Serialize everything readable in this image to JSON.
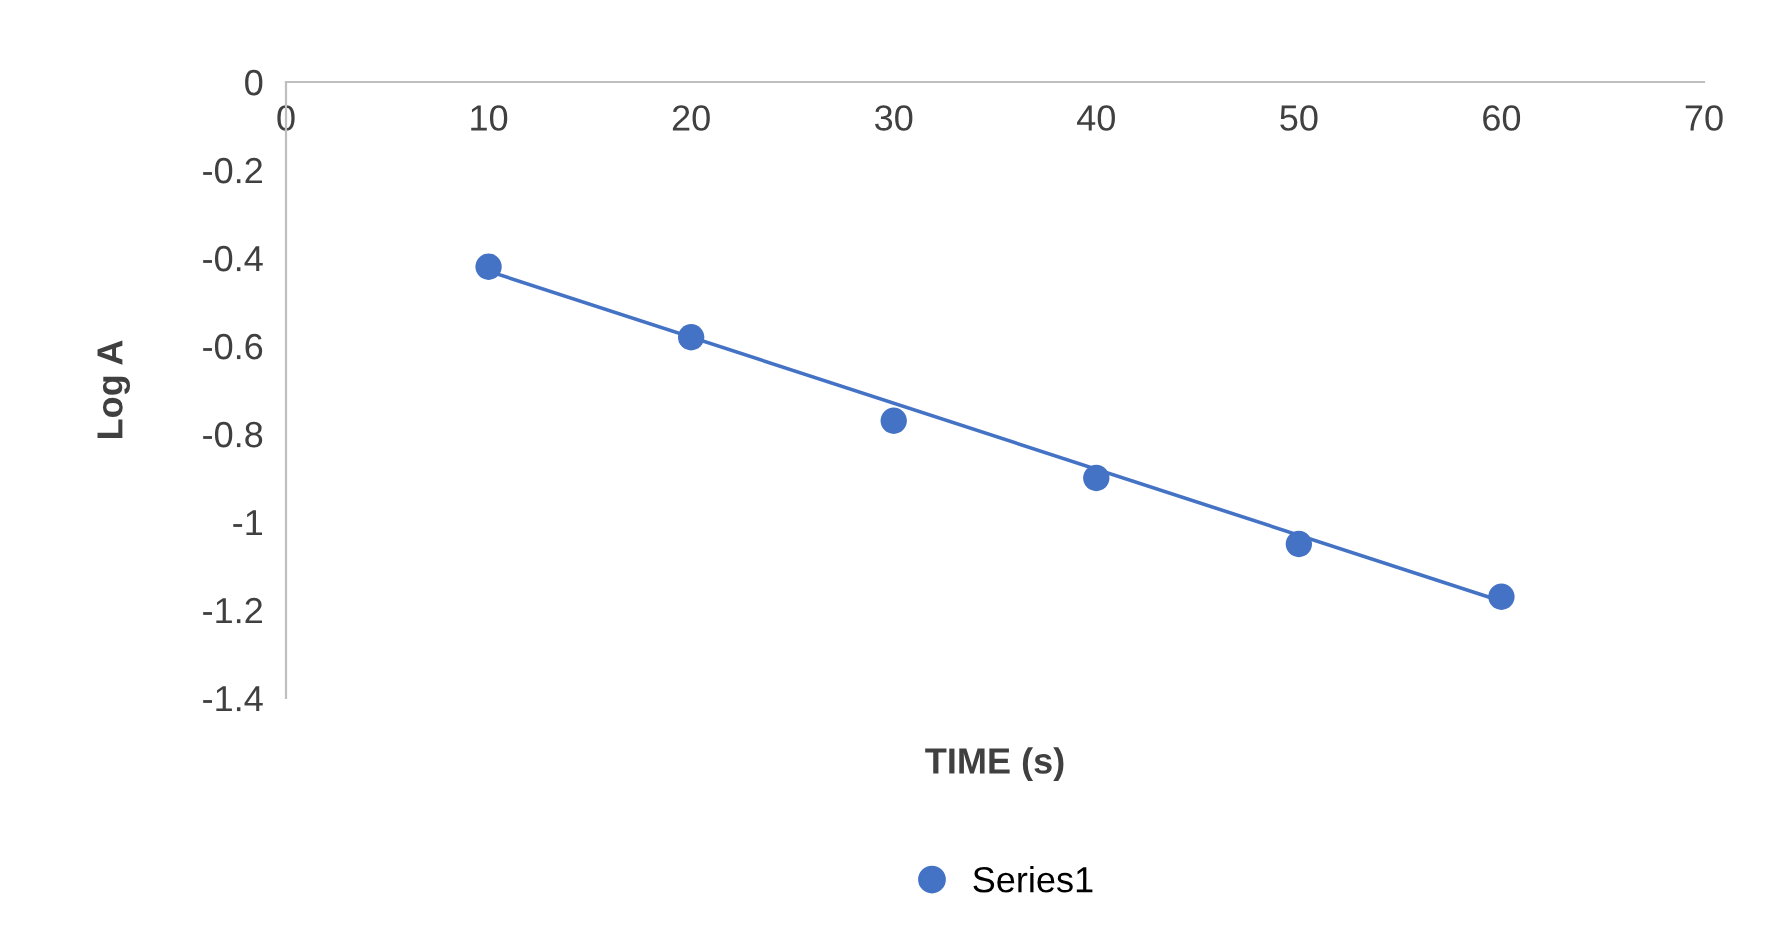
{
  "chart_data": {
    "type": "scatter",
    "xlabel": "TIME (s)",
    "ylabel": "Log A",
    "x": [
      10,
      20,
      30,
      40,
      50,
      60
    ],
    "series": [
      {
        "name": "Series1",
        "color": "#4472c4",
        "marker": "circle",
        "values": [
          -0.42,
          -0.58,
          -0.77,
          -0.9,
          -1.05,
          -1.17
        ]
      },
      {
        "type": "line",
        "color": "#4472c4",
        "x": [
          10,
          60
        ],
        "values": [
          -0.43,
          -1.18
        ],
        "line_style": "solid"
      }
    ],
    "xlim": [
      0,
      70
    ],
    "xticks": [
      0,
      10,
      20,
      30,
      40,
      50,
      60,
      70
    ],
    "ylim": [
      -1.4,
      0
    ],
    "yticks": [
      0,
      -0.2,
      -0.4,
      -0.6,
      -0.8,
      -1,
      -1.2,
      -1.4
    ],
    "grid": false,
    "legend": "bottom"
  }
}
